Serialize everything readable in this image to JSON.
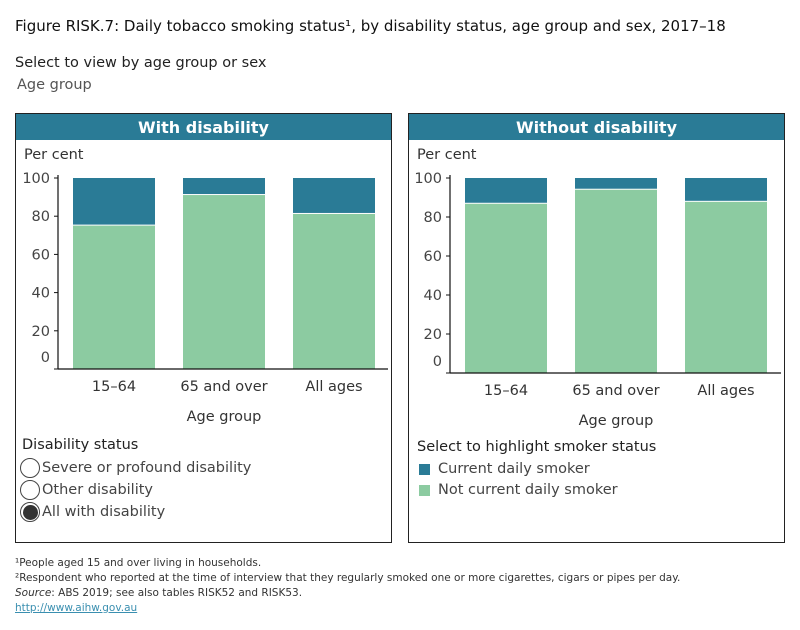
{
  "title": "Figure RISK.7: Daily tobacco smoking status¹, by disability status, age group and sex, 2017–18",
  "selector": {
    "label": "Select to view by age group or sex",
    "value": "Age group"
  },
  "colors": {
    "header": "#2a7b96",
    "current": "#2a7b96",
    "not_current": "#8ccba1"
  },
  "chart_data": [
    {
      "type": "bar",
      "stacked": true,
      "title": "With disability",
      "ylabel": "Per cent",
      "xlabel": "Age group",
      "ylim": [
        0,
        100
      ],
      "yticks": [
        0,
        20,
        40,
        60,
        80,
        100
      ],
      "categories": [
        "15–64",
        "65 and over",
        "All ages"
      ],
      "series": [
        {
          "name": "Not current daily smoker",
          "values": [
            75.6,
            91.6,
            81.7
          ]
        },
        {
          "name": "Current daily smoker",
          "values": [
            24.4,
            8.4,
            18.3
          ]
        }
      ]
    },
    {
      "type": "bar",
      "stacked": true,
      "title": "Without disability",
      "ylabel": "Per cent",
      "xlabel": "Age group",
      "ylim": [
        0,
        100
      ],
      "yticks": [
        0,
        20,
        40,
        60,
        80,
        100
      ],
      "categories": [
        "15–64",
        "65 and over",
        "All ages"
      ],
      "series": [
        {
          "name": "Not current daily smoker",
          "values": [
            87.3,
            94.5,
            88.3
          ]
        },
        {
          "name": "Current daily smoker",
          "values": [
            12.7,
            5.5,
            11.7
          ]
        }
      ]
    }
  ],
  "disability_filter": {
    "label": "Disability status",
    "options": [
      {
        "label": "Severe or profound disability",
        "selected": false
      },
      {
        "label": "Other disability",
        "selected": false
      },
      {
        "label": "All with disability",
        "selected": true
      }
    ]
  },
  "smoker_legend": {
    "label": "Select to highlight smoker status",
    "items": [
      "Current daily smoker",
      "Not current daily smoker"
    ]
  },
  "footnotes": {
    "n1": "¹People aged 15 and over living in households.",
    "n2": "²Respondent who reported at the time of interview that they regularly smoked one or more cigarettes, cigars or pipes per day.",
    "source_label": "Source",
    "source_text": ": ABS 2019; see also tables RISK52 and RISK53.",
    "link": "http://www.aihw.gov.au"
  }
}
